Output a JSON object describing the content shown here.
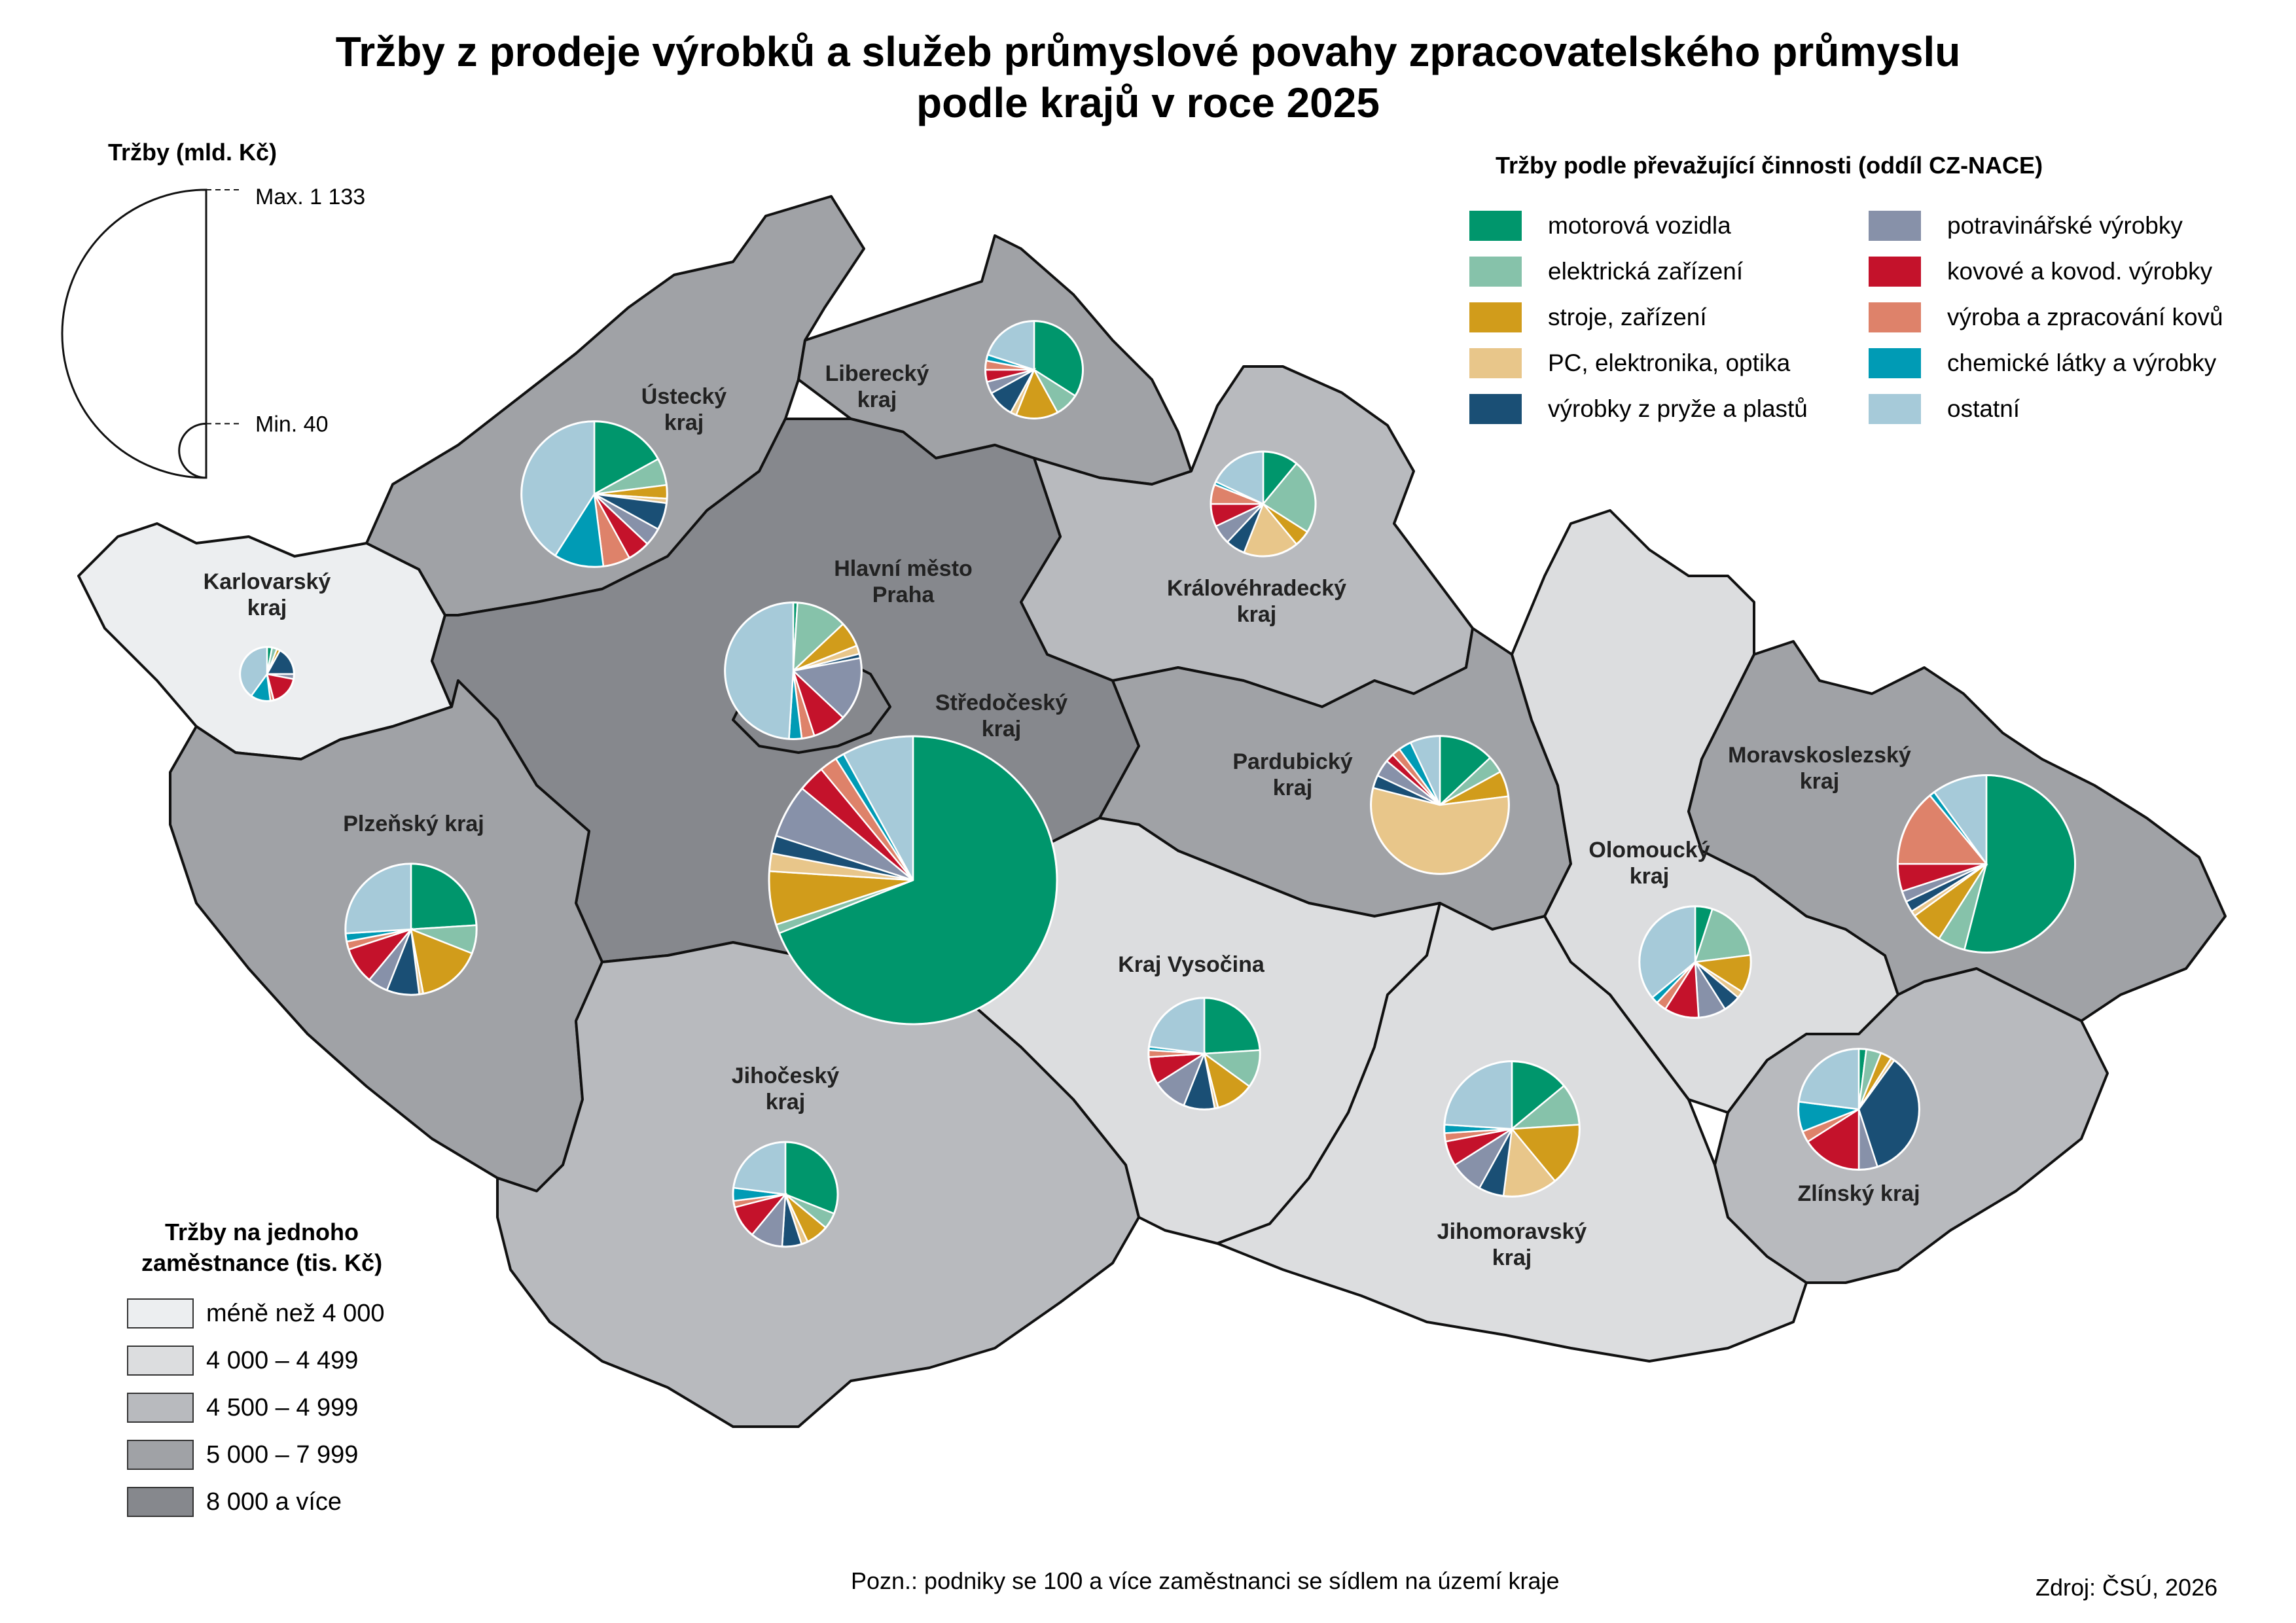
{
  "title": {
    "line1": "Tržby z prodeje výrobků a služeb průmyslové povahy zpracovatelského průmyslu",
    "line2": "podle krajů v roce 2025"
  },
  "size_legend": {
    "title": "Tržby (mld. Kč)",
    "max_label": "Max. 1 133",
    "min_label": "Min. 40",
    "max_value": 1133,
    "min_value": 40
  },
  "activity_legend": {
    "title": "Tržby podle převažující činnosti (oddíl CZ-NACE)",
    "items": [
      {
        "key": "motor",
        "label": "motorová vozidla",
        "color": "#00966c"
      },
      {
        "key": "elec",
        "label": "elektrická zařízení",
        "color": "#86c2aa"
      },
      {
        "key": "mach",
        "label": "stroje, zařízení",
        "color": "#d19c1b"
      },
      {
        "key": "pc",
        "label": "PC, elektronika, optika",
        "color": "#e8c68a"
      },
      {
        "key": "rubber",
        "label": "výrobky z pryže a plastů",
        "color": "#1a4f75"
      },
      {
        "key": "food",
        "label": "potravinářské výrobky",
        "color": "#8791a9"
      },
      {
        "key": "metalprod",
        "label": "kovové a kovod. výrobky",
        "color": "#c4122b"
      },
      {
        "key": "metal",
        "label": "výroba a zpracování kovů",
        "color": "#de826a"
      },
      {
        "key": "chem",
        "label": "chemické látky a výrobky",
        "color": "#009bb5"
      },
      {
        "key": "other",
        "label": "ostatní",
        "color": "#a6cad9"
      }
    ]
  },
  "choropleth_legend": {
    "title_line1": "Tržby na jednoho",
    "title_line2": "zaměstnance (tis. Kč)",
    "classes": [
      {
        "label": "méně než 4 000",
        "color": "#eceef0"
      },
      {
        "label": "4 000 – 4 499",
        "color": "#dcdddf"
      },
      {
        "label": "4 500 – 4 999",
        "color": "#b8babe"
      },
      {
        "label": "5 000 – 7 999",
        "color": "#a0a2a6"
      },
      {
        "label": "8 000 a více",
        "color": "#86888d"
      }
    ]
  },
  "regions": [
    {
      "id": "karlovarsky",
      "name_lines": [
        "Karlovarský",
        "kraj"
      ],
      "class": 0,
      "revenue": 40,
      "shares": {
        "motor": 3,
        "elec": 3,
        "mach": 2,
        "pc": 0,
        "rubber": 17,
        "food": 3,
        "metalprod": 18,
        "metal": 2,
        "chem": 12,
        "other": 40
      }
    },
    {
      "id": "ustecky",
      "name_lines": [
        "Ústecký",
        "kraj"
      ],
      "class": 3,
      "revenue": 290,
      "shares": {
        "motor": 17,
        "elec": 6,
        "mach": 3,
        "pc": 1,
        "rubber": 6,
        "food": 4,
        "metalprod": 5,
        "metal": 6,
        "chem": 11,
        "other": 41
      }
    },
    {
      "id": "liberecky",
      "name_lines": [
        "Liberecký",
        "kraj"
      ],
      "class": 3,
      "revenue": 130,
      "shares": {
        "motor": 34,
        "elec": 8,
        "mach": 14,
        "pc": 2,
        "rubber": 9,
        "food": 4,
        "metalprod": 4,
        "metal": 3,
        "chem": 2,
        "other": 20
      }
    },
    {
      "id": "kralovehradecky",
      "name_lines": [
        "Královéhradecký",
        "kraj"
      ],
      "class": 2,
      "revenue": 150,
      "shares": {
        "motor": 11,
        "elec": 23,
        "mach": 5,
        "pc": 17,
        "rubber": 6,
        "food": 6,
        "metalprod": 7,
        "metal": 6,
        "chem": 1,
        "other": 18
      }
    },
    {
      "id": "praha",
      "name_lines": [
        "Hlavní město",
        "Praha"
      ],
      "class": 4,
      "revenue": 255,
      "shares": {
        "motor": 1,
        "elec": 12,
        "mach": 6,
        "pc": 2,
        "rubber": 1,
        "food": 15,
        "metalprod": 8,
        "metal": 3,
        "chem": 3,
        "other": 49
      }
    },
    {
      "id": "stredocesky",
      "name_lines": [
        "Středočeský",
        "kraj"
      ],
      "class": 4,
      "revenue": 1133,
      "shares": {
        "motor": 69,
        "elec": 1,
        "mach": 6,
        "pc": 2,
        "rubber": 2,
        "food": 6,
        "metalprod": 3,
        "metal": 2,
        "chem": 1,
        "other": 8
      }
    },
    {
      "id": "pardubicky",
      "name_lines": [
        "Pardubický",
        "kraj"
      ],
      "class": 3,
      "revenue": 260,
      "shares": {
        "motor": 13,
        "elec": 4,
        "mach": 6,
        "pc": 56,
        "rubber": 3,
        "food": 4,
        "metalprod": 2,
        "metal": 2,
        "chem": 3,
        "other": 7
      }
    },
    {
      "id": "plzensky",
      "name_lines": [
        "Plzeňský kraj"
      ],
      "class": 3,
      "revenue": 235,
      "shares": {
        "motor": 24,
        "elec": 7,
        "mach": 16,
        "pc": 1,
        "rubber": 8,
        "food": 5,
        "metalprod": 9,
        "metal": 2,
        "chem": 2,
        "other": 26
      }
    },
    {
      "id": "vysocina",
      "name_lines": [
        "Kraj Vysočina"
      ],
      "class": 1,
      "revenue": 170,
      "shares": {
        "motor": 24,
        "elec": 11,
        "mach": 11,
        "pc": 1,
        "rubber": 9,
        "food": 10,
        "metalprod": 8,
        "metal": 2,
        "chem": 1,
        "other": 23
      }
    },
    {
      "id": "jihocesky",
      "name_lines": [
        "Jihočeský",
        "kraj"
      ],
      "class": 2,
      "revenue": 150,
      "shares": {
        "motor": 31,
        "elec": 5,
        "mach": 7,
        "pc": 2,
        "rubber": 6,
        "food": 10,
        "metalprod": 10,
        "metal": 2,
        "chem": 4,
        "other": 23
      }
    },
    {
      "id": "jihomoravsky",
      "name_lines": [
        "Jihomoravský",
        "kraj"
      ],
      "class": 1,
      "revenue": 250,
      "shares": {
        "motor": 14,
        "elec": 10,
        "mach": 15,
        "pc": 13,
        "rubber": 6,
        "food": 8,
        "metalprod": 6,
        "metal": 2,
        "chem": 2,
        "other": 24
      }
    },
    {
      "id": "olomoucky",
      "name_lines": [
        "Olomoucký",
        "kraj"
      ],
      "class": 1,
      "revenue": 170,
      "shares": {
        "motor": 5,
        "elec": 18,
        "mach": 11,
        "pc": 2,
        "rubber": 5,
        "food": 8,
        "metalprod": 10,
        "metal": 3,
        "chem": 2,
        "other": 36
      }
    },
    {
      "id": "moravskoslezsky",
      "name_lines": [
        "Moravskoslezský",
        "kraj"
      ],
      "class": 3,
      "revenue": 430,
      "shares": {
        "motor": 54,
        "elec": 5,
        "mach": 6,
        "pc": 1,
        "rubber": 2,
        "food": 2,
        "metalprod": 5,
        "metal": 14,
        "chem": 1,
        "other": 10
      }
    },
    {
      "id": "zlinsky",
      "name_lines": [
        "Zlínský kraj"
      ],
      "class": 2,
      "revenue": 200,
      "shares": {
        "motor": 2,
        "elec": 4,
        "mach": 3,
        "pc": 1,
        "rubber": 35,
        "food": 5,
        "metalprod": 16,
        "metal": 3,
        "chem": 8,
        "other": 23
      }
    }
  ],
  "footnote": "Pozn.: podniky se 100 a více zaměstnanci se sídlem na území kraje",
  "source": "Zdroj: ČSÚ, 2026"
}
